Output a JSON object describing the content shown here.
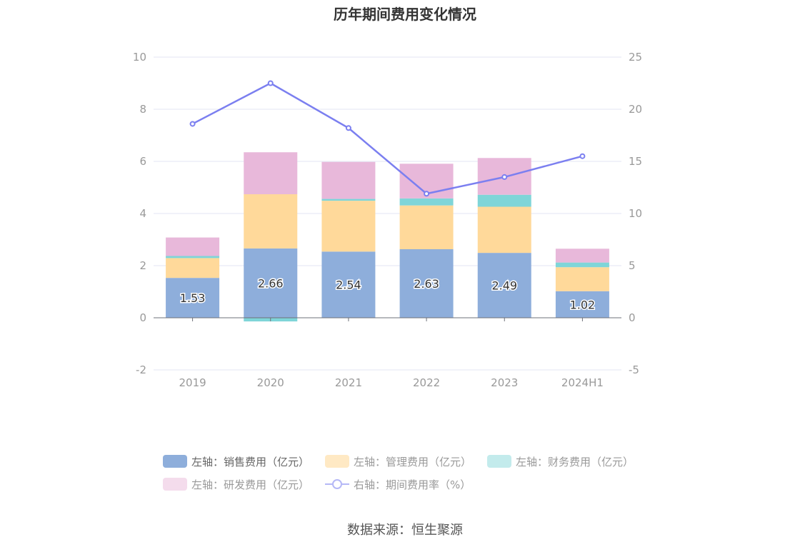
{
  "chart_data": {
    "type": "bar",
    "title": "历年期间费用变化情况",
    "categories": [
      "2019",
      "2020",
      "2021",
      "2022",
      "2023",
      "2024H1"
    ],
    "left_axis": {
      "ylim": [
        -2,
        10
      ],
      "ticks": [
        "-2",
        "0",
        "2",
        "4",
        "6",
        "8",
        "10"
      ]
    },
    "right_axis": {
      "ylim": [
        -5,
        25
      ],
      "ticks": [
        "-5",
        "0",
        "5",
        "10",
        "15",
        "20",
        "25"
      ]
    },
    "series": [
      {
        "name": "左轴：销售费用（亿元）",
        "type": "bar",
        "stack": "left",
        "color": "#8eaedb",
        "values": [
          1.53,
          2.66,
          2.54,
          2.63,
          2.49,
          1.02
        ],
        "labels": [
          "1.53",
          "2.66",
          "2.54",
          "2.63",
          "2.49",
          "1.02"
        ]
      },
      {
        "name": "左轴：管理费用（亿元）",
        "type": "bar",
        "stack": "left",
        "color": "#ffd99a",
        "values": [
          0.76,
          2.08,
          1.95,
          1.68,
          1.77,
          0.92
        ]
      },
      {
        "name": "左轴：财务费用（亿元）",
        "type": "bar",
        "stack": "left",
        "color": "#7fd5d8",
        "values": [
          0.08,
          -0.14,
          0.07,
          0.27,
          0.46,
          0.18
        ]
      },
      {
        "name": "左轴：研发费用（亿元）",
        "type": "bar",
        "stack": "left",
        "color": "#e8b8da",
        "values": [
          0.71,
          1.61,
          1.42,
          1.33,
          1.41,
          0.53
        ]
      },
      {
        "name": "右轴：期间费用率（%）",
        "type": "line",
        "axis": "right",
        "color": "#7b7ff0",
        "values": [
          18.6,
          22.5,
          18.2,
          11.9,
          13.5,
          15.5
        ]
      }
    ]
  },
  "legend": [
    {
      "label": "左轴：销售费用（亿元）",
      "color": "#8eaedb"
    },
    {
      "label": "左轴：管理费用（亿元）",
      "color": "#ffe9c4"
    },
    {
      "label": "左轴：财务费用（亿元）",
      "color": "#c3ebec"
    },
    {
      "label": "左轴：研发费用（亿元）",
      "color": "#f4dcec"
    },
    {
      "label": "右轴：期间费用率（%）",
      "color": "#b5b8f6"
    }
  ],
  "source": "数据来源：恒生聚源"
}
